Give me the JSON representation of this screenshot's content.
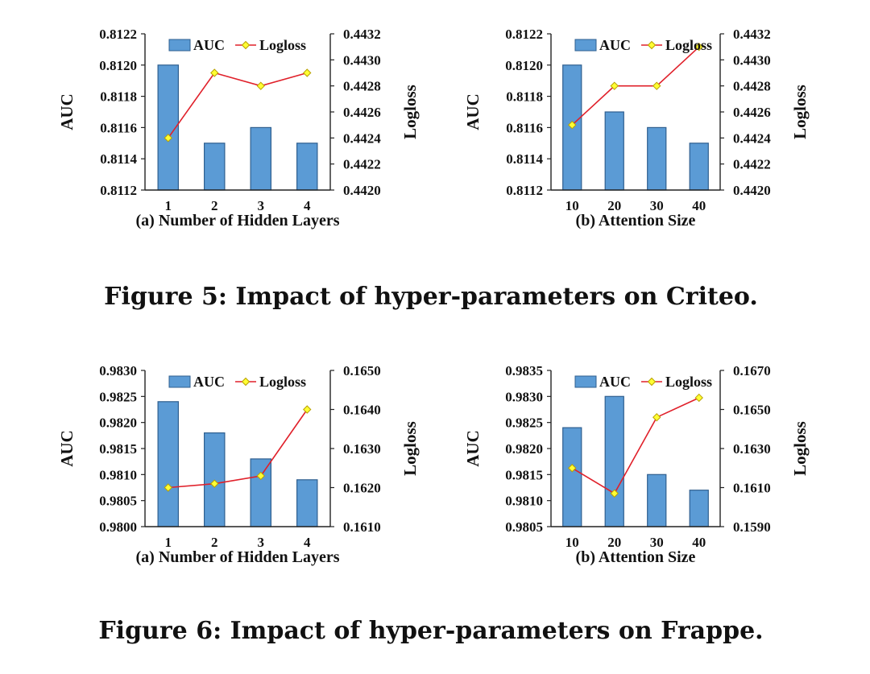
{
  "figures": [
    {
      "caption": "Figure 5: Impact of hyper-parameters on Criteo."
    },
    {
      "caption": "Figure 6: Impact of hyper-parameters on Frappe."
    }
  ],
  "legend": {
    "bar": "AUC",
    "line": "Logloss"
  },
  "colors": {
    "bar_fill": "#5b9bd5",
    "bar_stroke": "#2f5f8f",
    "line": "#e0202a",
    "marker_fill": "#ffff33",
    "marker_stroke": "#b8a000",
    "axis": "#222222"
  },
  "chart_data": [
    {
      "type": "bar",
      "panel_label": "(a) Number of Hidden Layers",
      "categories": [
        "1",
        "2",
        "3",
        "4"
      ],
      "ylabel_left": "AUC",
      "ylabel_right": "Logloss",
      "ylim_left": [
        0.8112,
        0.8122
      ],
      "yticks_left": [
        "0.8112",
        "0.8114",
        "0.8116",
        "0.8118",
        "0.8120",
        "0.8122"
      ],
      "ylim_right": [
        0.442,
        0.4432
      ],
      "yticks_right": [
        "0.4420",
        "0.4422",
        "0.4424",
        "0.4426",
        "0.4428",
        "0.4430",
        "0.4432"
      ],
      "series": [
        {
          "name": "AUC",
          "type": "bar",
          "axis": "left",
          "values": [
            0.812,
            0.8115,
            0.8116,
            0.8115
          ]
        },
        {
          "name": "Logloss",
          "type": "line",
          "axis": "right",
          "values": [
            0.4424,
            0.4429,
            0.4428,
            0.4429
          ]
        }
      ]
    },
    {
      "type": "bar",
      "panel_label": "(b) Attention Size",
      "categories": [
        "10",
        "20",
        "30",
        "40"
      ],
      "ylabel_left": "AUC",
      "ylabel_right": "Logloss",
      "ylim_left": [
        0.8112,
        0.8122
      ],
      "yticks_left": [
        "0.8112",
        "0.8114",
        "0.8116",
        "0.8118",
        "0.8120",
        "0.8122"
      ],
      "ylim_right": [
        0.442,
        0.4432
      ],
      "yticks_right": [
        "0.4420",
        "0.4422",
        "0.4424",
        "0.4426",
        "0.4428",
        "0.4430",
        "0.4432"
      ],
      "series": [
        {
          "name": "AUC",
          "type": "bar",
          "axis": "left",
          "values": [
            0.812,
            0.8117,
            0.8116,
            0.8115
          ]
        },
        {
          "name": "Logloss",
          "type": "line",
          "axis": "right",
          "values": [
            0.4425,
            0.4428,
            0.4428,
            0.4431
          ]
        }
      ]
    },
    {
      "type": "bar",
      "panel_label": "(a) Number of Hidden Layers",
      "categories": [
        "1",
        "2",
        "3",
        "4"
      ],
      "ylabel_left": "AUC",
      "ylabel_right": "Logloss",
      "ylim_left": [
        0.98,
        0.983
      ],
      "yticks_left": [
        "0.9800",
        "0.9805",
        "0.9810",
        "0.9815",
        "0.9820",
        "0.9825",
        "0.9830"
      ],
      "ylim_right": [
        0.161,
        0.165
      ],
      "yticks_right": [
        "0.1610",
        "0.1620",
        "0.1630",
        "0.1640",
        "0.1650"
      ],
      "series": [
        {
          "name": "AUC",
          "type": "bar",
          "axis": "left",
          "values": [
            0.9824,
            0.9818,
            0.9813,
            0.9809
          ]
        },
        {
          "name": "Logloss",
          "type": "line",
          "axis": "right",
          "values": [
            0.162,
            0.1621,
            0.1623,
            0.164
          ]
        }
      ]
    },
    {
      "type": "bar",
      "panel_label": "(b) Attention Size",
      "categories": [
        "10",
        "20",
        "30",
        "40"
      ],
      "ylabel_left": "AUC",
      "ylabel_right": "Logloss",
      "ylim_left": [
        0.9805,
        0.9835
      ],
      "yticks_left": [
        "0.9805",
        "0.9810",
        "0.9815",
        "0.9820",
        "0.9825",
        "0.9830",
        "0.9835"
      ],
      "ylim_right": [
        0.159,
        0.167
      ],
      "yticks_right": [
        "0.1590",
        "0.1610",
        "0.1630",
        "0.1650",
        "0.1670"
      ],
      "series": [
        {
          "name": "AUC",
          "type": "bar",
          "axis": "left",
          "values": [
            0.9824,
            0.983,
            0.9815,
            0.9812
          ]
        },
        {
          "name": "Logloss",
          "type": "line",
          "axis": "right",
          "values": [
            0.162,
            0.1607,
            0.1646,
            0.1656
          ]
        }
      ]
    }
  ]
}
